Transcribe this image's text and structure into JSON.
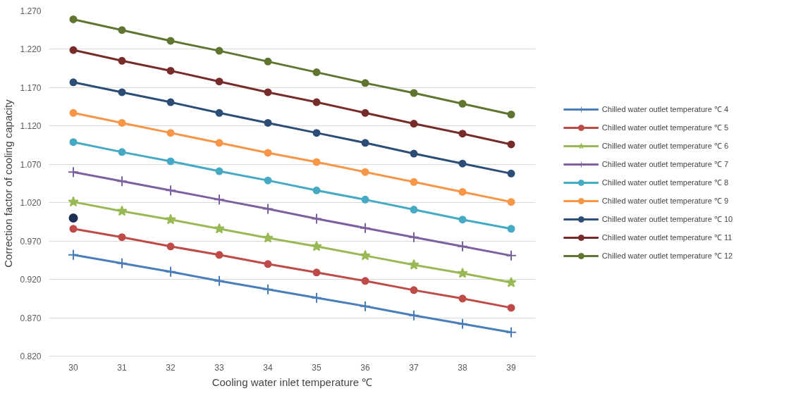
{
  "chart_data": {
    "type": "line",
    "xlabel": "Cooling water inlet temperature ℃",
    "ylabel": "Correction factor of cooling capacity",
    "categories": [
      "30",
      "31",
      "32",
      "33",
      "34",
      "35",
      "36",
      "37",
      "38",
      "39"
    ],
    "ylim": [
      0.82,
      1.27
    ],
    "yticks": [
      {
        "value": 0.82,
        "label": "0.820"
      },
      {
        "value": 0.87,
        "label": "0.870"
      },
      {
        "value": 0.92,
        "label": "0.920"
      },
      {
        "value": 0.97,
        "label": "0.970"
      },
      {
        "value": 1.02,
        "label": "1.020"
      },
      {
        "value": 1.07,
        "label": "1.070"
      },
      {
        "value": 1.12,
        "label": "1.120"
      },
      {
        "value": 1.17,
        "label": "1.170"
      },
      {
        "value": 1.22,
        "label": "1.220"
      },
      {
        "value": 1.27,
        "label": "1.270"
      }
    ],
    "grid": "y",
    "legend": "right",
    "line_style": "solid",
    "series": [
      {
        "name": "Chilled water outlet temperature ℃ 4",
        "color": "#4a7ebb",
        "marker": "cross",
        "values": [
          0.952,
          0.941,
          0.93,
          0.918,
          0.907,
          0.896,
          0.885,
          0.873,
          0.862,
          0.851
        ]
      },
      {
        "name": "Chilled water outlet temperature ℃ 5",
        "color": "#be4b48",
        "marker": "circle",
        "values": [
          0.986,
          0.975,
          0.963,
          0.952,
          0.94,
          0.929,
          0.918,
          0.906,
          0.895,
          0.883
        ]
      },
      {
        "name": "Chilled water outlet temperature ℃ 6",
        "color": "#98b954",
        "marker": "star",
        "values": [
          1.021,
          1.009,
          0.998,
          0.986,
          0.974,
          0.963,
          0.951,
          0.939,
          0.928,
          0.916
        ]
      },
      {
        "name": "Chilled water outlet temperature ℃ 7",
        "color": "#7d60a0",
        "marker": "cross",
        "values": [
          1.06,
          1.048,
          1.036,
          1.024,
          1.012,
          0.999,
          0.987,
          0.975,
          0.963,
          0.951
        ]
      },
      {
        "name": "Chilled water outlet temperature ℃ 8",
        "color": "#46aac5",
        "marker": "circle",
        "values": [
          1.099,
          1.086,
          1.074,
          1.061,
          1.049,
          1.036,
          1.024,
          1.011,
          0.998,
          0.986
        ]
      },
      {
        "name": "Chilled water outlet temperature ℃ 9",
        "color": "#f79646",
        "marker": "circle",
        "values": [
          1.137,
          1.124,
          1.111,
          1.098,
          1.085,
          1.073,
          1.06,
          1.047,
          1.034,
          1.021
        ]
      },
      {
        "name": "Chilled water outlet temperature ℃ 10",
        "color": "#2c4d75",
        "marker": "circle",
        "values": [
          1.177,
          1.164,
          1.151,
          1.137,
          1.124,
          1.111,
          1.098,
          1.084,
          1.071,
          1.058
        ]
      },
      {
        "name": "Chilled water outlet temperature ℃ 11",
        "color": "#772c2a",
        "marker": "circle",
        "values": [
          1.219,
          1.205,
          1.192,
          1.178,
          1.164,
          1.151,
          1.137,
          1.123,
          1.11,
          1.096
        ]
      },
      {
        "name": "Chilled water outlet temperature ℃ 12",
        "color": "#5f7530",
        "marker": "circle",
        "values": [
          1.259,
          1.245,
          1.231,
          1.218,
          1.204,
          1.19,
          1.176,
          1.163,
          1.149,
          1.135
        ]
      },
      {
        "type": "scatter",
        "color": "#1f2f55",
        "marker": "circle",
        "values": [
          1.0,
          null,
          null,
          null,
          null,
          null,
          null,
          null,
          null,
          null
        ]
      }
    ]
  }
}
